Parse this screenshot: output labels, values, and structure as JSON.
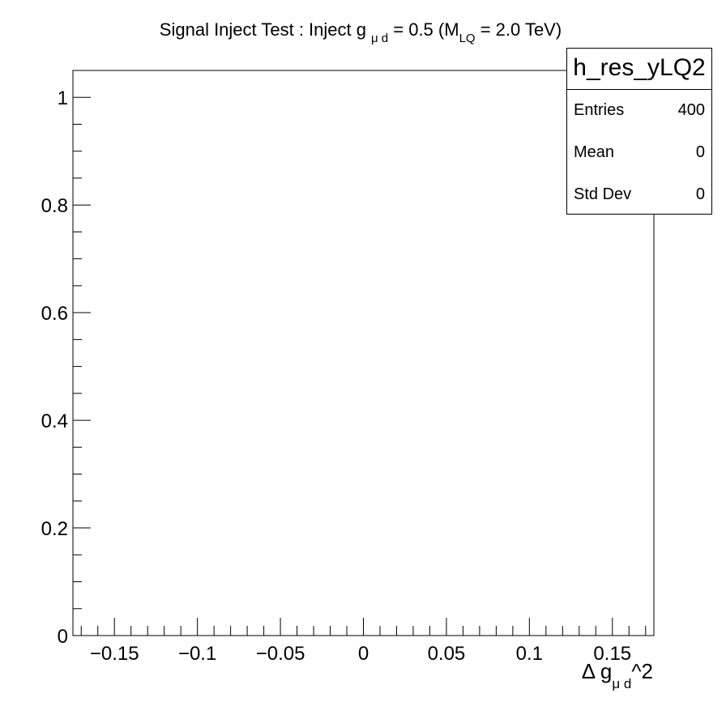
{
  "chart_data": {
    "type": "histogram",
    "title_parts": [
      "Signal Inject Test : Inject g",
      "μ d",
      " = 0.5 (M",
      "LQ",
      " = 2.0 TeV)"
    ],
    "xlabel_parts": [
      "Δ g",
      "μ d",
      "^2"
    ],
    "ylabel": "",
    "xlim": [
      -0.175,
      0.175
    ],
    "ylim": [
      0,
      1.05
    ],
    "x_major_ticks": [
      -0.15,
      -0.1,
      -0.05,
      0,
      0.05,
      0.1,
      0.15
    ],
    "x_tick_labels": [
      "−0.15",
      "−0.1",
      "−0.05",
      "0",
      "0.05",
      "0.1",
      "0.15"
    ],
    "y_major_ticks": [
      0,
      0.2,
      0.4,
      0.6,
      0.8,
      1
    ],
    "y_tick_labels": [
      "0",
      "0.2",
      "0.4",
      "0.6",
      "0.8",
      "1"
    ],
    "series": [],
    "grid": false,
    "stats": {
      "name": "h_res_yLQ2",
      "rows": [
        {
          "label": "Entries",
          "value": "400"
        },
        {
          "label": "Mean",
          "value": "0"
        },
        {
          "label": "Std Dev",
          "value": "0"
        }
      ],
      "placement": "top-right"
    }
  }
}
